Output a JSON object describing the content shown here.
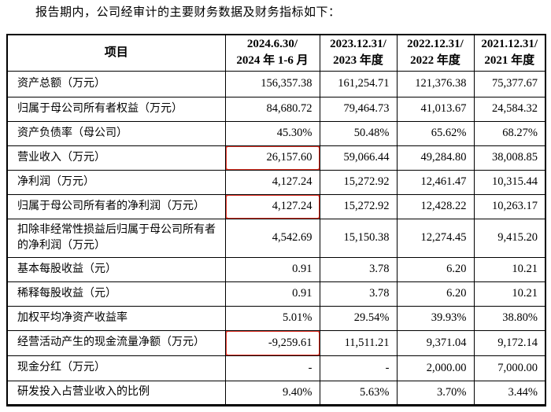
{
  "colors": {
    "highlight_red": "#e8392c",
    "text": "#000000",
    "background": "#ffffff"
  },
  "intro": {
    "text": "报告期内，公司经审计的主要财务数据及财务指标如下："
  },
  "table": {
    "header": {
      "item": "项目",
      "periods": [
        {
          "line1": "2024.6.30/",
          "line2": "2024 年 1-6 月"
        },
        {
          "line1": "2023.12.31/",
          "line2": "2023 年度"
        },
        {
          "line1": "2022.12.31/",
          "line2": "2022 年度"
        },
        {
          "line1": "2021.12.31/",
          "line2": "2021 年度"
        }
      ]
    },
    "rows": [
      {
        "label": "资产总额（万元）",
        "values": [
          "156,357.38",
          "161,254.71",
          "121,376.38",
          "75,377.67"
        ],
        "highlighted_value": null
      },
      {
        "label": "归属于母公司所有者权益（万元）",
        "values": [
          "84,680.72",
          "79,464.73",
          "41,013.67",
          "24,584.32"
        ],
        "highlighted_value": null
      },
      {
        "label": "资产负债率（母公司）",
        "values": [
          "45.30%",
          "50.48%",
          "65.62%",
          "68.27%"
        ],
        "highlighted_value": null
      },
      {
        "label": "营业收入（万元）",
        "values": [
          "26,157.60",
          "59,066.44",
          "49,284.80",
          "38,008.85"
        ],
        "highlighted_value": 0
      },
      {
        "label": "净利润（万元）",
        "values": [
          "4,127.24",
          "15,272.92",
          "12,461.47",
          "10,315.44"
        ],
        "highlighted_value": null
      },
      {
        "label": "归属于母公司所有者的净利润（万元）",
        "values": [
          "4,127.24",
          "15,272.92",
          "12,428.22",
          "10,263.17"
        ],
        "highlighted_value": 0
      },
      {
        "label": "扣除非经常性损益后归属于母公司所有者的净利润（万元）",
        "values": [
          "4,542.69",
          "15,150.38",
          "12,274.45",
          "9,415.20"
        ],
        "highlighted_value": null
      },
      {
        "label": "基本每股收益（元）",
        "values": [
          "0.91",
          "3.78",
          "6.20",
          "10.21"
        ],
        "highlighted_value": null
      },
      {
        "label": "稀释每股收益（元）",
        "values": [
          "0.91",
          "3.78",
          "6.20",
          "10.21"
        ],
        "highlighted_value": null
      },
      {
        "label": "加权平均净资产收益率",
        "values": [
          "5.01%",
          "29.54%",
          "39.93%",
          "38.80%"
        ],
        "highlighted_value": null
      },
      {
        "label": "经营活动产生的现金流量净额（万元）",
        "values": [
          "-9,259.61",
          "11,511.21",
          "9,371.04",
          "9,172.14"
        ],
        "highlighted_value": 0
      },
      {
        "label": "现金分红（万元）",
        "values": [
          "-",
          "-",
          "2,000.00",
          "7,000.00"
        ],
        "highlighted_value": null
      },
      {
        "label": "研发投入占营业收入的比例",
        "values": [
          "9.40%",
          "5.63%",
          "3.70%",
          "3.44%"
        ],
        "highlighted_value": null
      }
    ]
  }
}
